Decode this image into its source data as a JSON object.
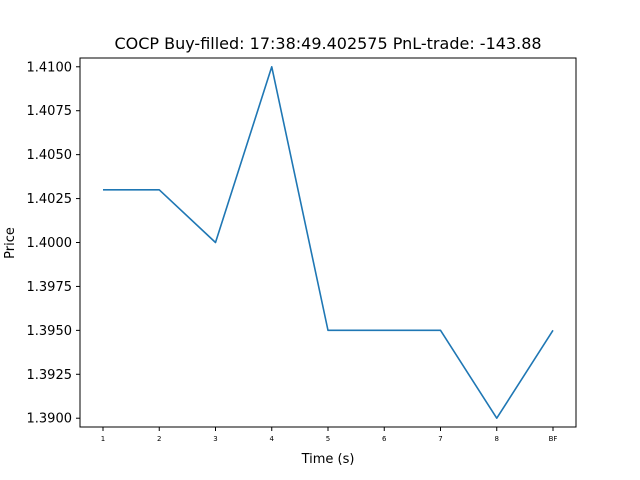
{
  "chart_data": {
    "type": "line",
    "title": "COCP  Buy-filled:  17:38:49.402575  PnL-trade:  -143.88",
    "xlabel": "Time (s)",
    "ylabel": "Price",
    "categories": [
      "1",
      "2",
      "3",
      "4",
      "5",
      "6",
      "7",
      "8",
      "BF"
    ],
    "values": [
      1.403,
      1.403,
      1.4,
      1.41,
      1.395,
      1.395,
      1.395,
      1.39,
      1.395
    ],
    "ylim": [
      1.3895,
      1.4105
    ],
    "yticks": [
      "1.3900",
      "1.3925",
      "1.3950",
      "1.3975",
      "1.4000",
      "1.4025",
      "1.4050",
      "1.4075",
      "1.4100"
    ],
    "grid": false,
    "line_color": "#1f77b4"
  }
}
